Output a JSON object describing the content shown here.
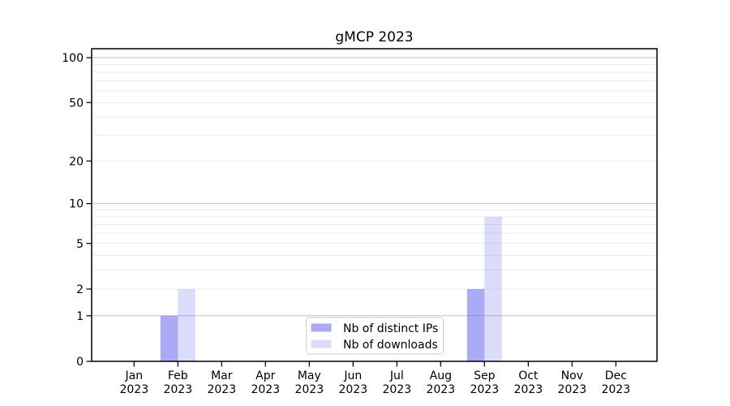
{
  "figure": {
    "background": "#ffffff"
  },
  "chart_data": {
    "type": "bar",
    "title": "gMCP 2023",
    "categories": [
      "Jan 2023",
      "Feb 2023",
      "Mar 2023",
      "Apr 2023",
      "May 2023",
      "Jun 2023",
      "Jul 2023",
      "Aug 2023",
      "Sep 2023",
      "Oct 2023",
      "Nov 2023",
      "Dec 2023"
    ],
    "x_tick_line1": [
      "Jan",
      "Feb",
      "Mar",
      "Apr",
      "May",
      "Jun",
      "Jul",
      "Aug",
      "Sep",
      "Oct",
      "Nov",
      "Dec"
    ],
    "x_tick_line2": [
      "2023",
      "2023",
      "2023",
      "2023",
      "2023",
      "2023",
      "2023",
      "2023",
      "2023",
      "2023",
      "2023",
      "2023"
    ],
    "series": [
      {
        "name": "Nb of distinct IPs",
        "values": [
          0,
          1,
          0,
          0,
          0,
          0,
          0,
          0,
          2,
          0,
          0,
          0
        ],
        "base_color": "#5555f0",
        "alpha": 0.5,
        "solid_color": "#aaaaf7"
      },
      {
        "name": "Nb of downloads",
        "values": [
          0,
          2,
          0,
          0,
          0,
          0,
          0,
          0,
          8,
          0,
          0,
          0
        ],
        "base_color": "#5555f0",
        "alpha": 0.21,
        "solid_color": "#dcdcf9"
      }
    ],
    "y_axis": {
      "scale": "log1p",
      "tick_values": [
        0,
        1,
        2,
        5,
        10,
        20,
        50,
        100
      ],
      "tick_labels": [
        "0",
        "1",
        "2",
        "5",
        "10",
        "20",
        "50",
        "100"
      ],
      "decade_gridlines": [
        1,
        10,
        100
      ],
      "minor_gridlines": [
        2,
        3,
        4,
        5,
        6,
        7,
        8,
        9,
        20,
        30,
        40,
        50,
        60,
        70,
        80,
        90
      ],
      "ylim_top": 115
    },
    "legend": {
      "position": "lower center",
      "entries": [
        {
          "label": "Nb of distinct IPs",
          "swatch_color": "#aaaaf7"
        },
        {
          "label": "Nb of downloads",
          "swatch_color": "#dcdcf9"
        }
      ]
    },
    "grid": true,
    "colors": {
      "grid_decade": "#c9c9c9",
      "grid_minor": "#ececec",
      "spine": "#000000",
      "text": "#000000",
      "legend_border": "#cccccc",
      "legend_bg": "#ffffff"
    }
  }
}
